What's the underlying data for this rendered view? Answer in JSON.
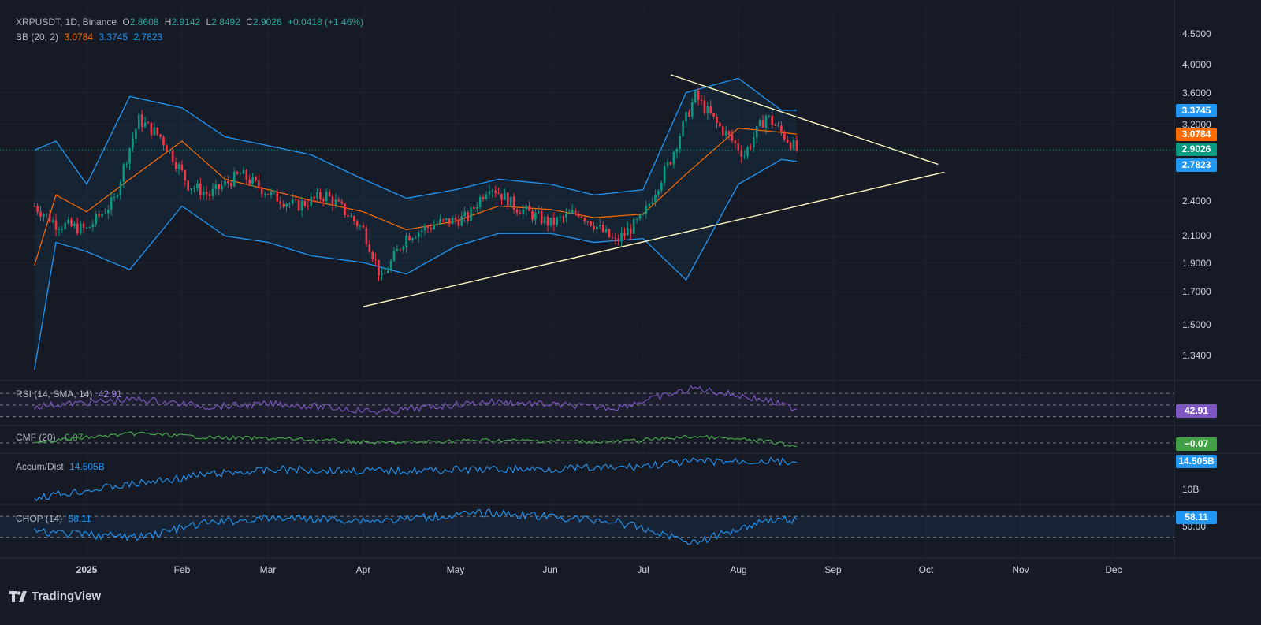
{
  "header": {
    "symbol": "XRPUSDT, 1D, Binance",
    "open_k": "O",
    "open": "2.8608",
    "high_k": "H",
    "high": "2.9142",
    "low_k": "L",
    "low": "2.8492",
    "close_k": "C",
    "close": "2.9026",
    "change": "+0.0418 (+1.46%)"
  },
  "bb_legend": {
    "label": "BB (20, 2)",
    "basis": "3.0784",
    "upper": "3.3745",
    "lower": "2.7823"
  },
  "price_axis": {
    "scale": "log",
    "ticks": [
      "4.5000",
      "4.0000",
      "3.6000",
      "3.2000",
      "2.4000",
      "2.1000",
      "1.9000",
      "1.7000",
      "1.5000",
      "1.3400"
    ]
  },
  "price_tags": [
    {
      "value": "3.3745",
      "color": "#2196f3"
    },
    {
      "value": "3.0784",
      "color": "#ff6d00"
    },
    {
      "value": "2.9026",
      "color": "#089981"
    },
    {
      "value": "2.7823",
      "color": "#2196f3"
    }
  ],
  "x_axis": [
    "2025",
    "Feb",
    "Mar",
    "Apr",
    "May",
    "Jun",
    "Jul",
    "Aug",
    "Sep",
    "Oct",
    "Nov",
    "Dec"
  ],
  "panes": {
    "rsi": {
      "label": "RSI (14, SMA, 14)",
      "value": "42.91",
      "color": "#7e57c2"
    },
    "cmf": {
      "label": "CMF (20)",
      "value": "−0.07",
      "legend_value": "-0.07",
      "color": "#4caf50"
    },
    "ad": {
      "label": "Accum/Dist",
      "value": "14.505B",
      "tick": "10B",
      "color": "#2196f3"
    },
    "chop": {
      "label": "CHOP (14)",
      "value": "58.11",
      "tick": "50.00",
      "color": "#2196f3"
    }
  },
  "brand": "TradingView",
  "chart_data": {
    "type": "line",
    "title": "XRPUSDT, 1D, Binance",
    "y_scale": "log",
    "ylim": [
      1.25,
      4.7
    ],
    "x_labels": [
      "2025",
      "Feb",
      "Mar",
      "Apr",
      "May",
      "Jun",
      "Jul",
      "Aug",
      "Sep",
      "Oct",
      "Nov",
      "Dec"
    ],
    "series": [
      {
        "name": "BB (20, 2)",
        "kind": "lower",
        "x": [
          "2024-12-15",
          "2024-12-22",
          "2025-01-01",
          "2025-01-15",
          "2025-02-01",
          "2025-02-15",
          "2025-03-01",
          "2025-03-15",
          "2025-04-01",
          "2025-04-15",
          "2025-05-01",
          "2025-05-15",
          "2025-06-01",
          "2025-06-15",
          "2025-07-01",
          "2025-07-15",
          "2025-08-01",
          "2025-08-15",
          "2025-08-20"
        ],
        "values": [
          1.27,
          2.05,
          1.98,
          1.85,
          2.35,
          2.1,
          2.05,
          1.95,
          1.9,
          1.82,
          2.02,
          2.12,
          2.12,
          2.05,
          2.08,
          1.78,
          2.55,
          2.8,
          2.78
        ]
      },
      {
        "name": "BB (20, 2)",
        "kind": "upper",
        "x": [
          "2024-12-15",
          "2024-12-22",
          "2025-01-01",
          "2025-01-15",
          "2025-02-01",
          "2025-02-15",
          "2025-03-01",
          "2025-03-15",
          "2025-04-01",
          "2025-04-15",
          "2025-05-01",
          "2025-05-15",
          "2025-06-01",
          "2025-06-15",
          "2025-07-01",
          "2025-07-15",
          "2025-08-01",
          "2025-08-15",
          "2025-08-20"
        ],
        "values": [
          2.9,
          3.0,
          2.55,
          3.55,
          3.4,
          3.05,
          2.95,
          2.85,
          2.6,
          2.42,
          2.5,
          2.6,
          2.55,
          2.45,
          2.5,
          3.6,
          3.8,
          3.37,
          3.37
        ]
      },
      {
        "name": "BB (20, 2)",
        "kind": "basis",
        "x": [
          "2024-12-15",
          "2024-12-22",
          "2025-01-01",
          "2025-01-15",
          "2025-02-01",
          "2025-02-15",
          "2025-03-01",
          "2025-03-15",
          "2025-04-01",
          "2025-04-15",
          "2025-05-01",
          "2025-05-15",
          "2025-06-01",
          "2025-06-15",
          "2025-07-01",
          "2025-07-15",
          "2025-08-01",
          "2025-08-15",
          "2025-08-20"
        ],
        "values": [
          1.88,
          2.45,
          2.3,
          2.6,
          3.0,
          2.6,
          2.5,
          2.4,
          2.3,
          2.15,
          2.22,
          2.35,
          2.32,
          2.25,
          2.28,
          2.65,
          3.15,
          3.1,
          3.08
        ]
      },
      {
        "name": "XRPUSDT",
        "kind": "close",
        "x": [
          "2024-12-15",
          "2024-12-22",
          "2025-01-01",
          "2025-01-10",
          "2025-01-18",
          "2025-01-25",
          "2025-02-03",
          "2025-02-10",
          "2025-02-20",
          "2025-03-02",
          "2025-03-10",
          "2025-03-20",
          "2025-04-01",
          "2025-04-07",
          "2025-04-15",
          "2025-04-25",
          "2025-05-05",
          "2025-05-12",
          "2025-05-20",
          "2025-06-01",
          "2025-06-10",
          "2025-06-22",
          "2025-07-01",
          "2025-07-10",
          "2025-07-18",
          "2025-07-25",
          "2025-08-03",
          "2025-08-10",
          "2025-08-15",
          "2025-08-20"
        ],
        "values": [
          2.35,
          2.2,
          2.15,
          2.4,
          3.25,
          3.05,
          2.55,
          2.45,
          2.65,
          2.45,
          2.35,
          2.45,
          2.15,
          1.78,
          2.1,
          2.2,
          2.25,
          2.55,
          2.35,
          2.2,
          2.3,
          2.05,
          2.25,
          2.8,
          3.55,
          3.2,
          2.85,
          3.3,
          3.1,
          2.9026
        ]
      }
    ],
    "trendlines": [
      {
        "name": "resistance",
        "from": [
          "2025-07-10",
          3.85
        ],
        "to": [
          "2025-10-05",
          2.75
        ]
      },
      {
        "name": "support",
        "from": [
          "2025-04-01",
          1.61
        ],
        "to": [
          "2025-10-07",
          2.67
        ]
      }
    ],
    "indicators": {
      "rsi": {
        "x": [
          "2024-12-15",
          "2025-01-18",
          "2025-02-10",
          "2025-03-05",
          "2025-04-07",
          "2025-05-12",
          "2025-06-22",
          "2025-07-18",
          "2025-08-10",
          "2025-08-20"
        ],
        "values": [
          48,
          60,
          47,
          52,
          38,
          56,
          45,
          79,
          58,
          42.91
        ],
        "bands": [
          70,
          50,
          30
        ]
      },
      "cmf": {
        "x": [
          "2024-12-15",
          "2025-01-18",
          "2025-02-10",
          "2025-03-05",
          "2025-04-07",
          "2025-05-12",
          "2025-06-22",
          "2025-07-18",
          "2025-08-10",
          "2025-08-20"
        ],
        "values": [
          0.02,
          0.18,
          0.1,
          0.08,
          0.0,
          0.05,
          0.02,
          0.12,
          0.03,
          -0.07
        ],
        "zero_line": 0
      },
      "accum_dist": {
        "x": [
          "2024-12-15",
          "2025-01-18",
          "2025-02-10",
          "2025-03-05",
          "2025-04-07",
          "2025-05-12",
          "2025-06-22",
          "2025-07-18",
          "2025-08-10",
          "2025-08-20"
        ],
        "values": [
          10.0,
          11.8,
          13.0,
          13.6,
          13.4,
          13.6,
          13.8,
          14.6,
          14.7,
          14.505
        ]
      },
      "chop": {
        "x": [
          "2024-12-15",
          "2025-01-18",
          "2025-02-10",
          "2025-03-05",
          "2025-04-07",
          "2025-05-12",
          "2025-06-22",
          "2025-07-18",
          "2025-08-10",
          "2025-08-20"
        ],
        "values": [
          44,
          38,
          55,
          60,
          57,
          66,
          56,
          32,
          58,
          58.11
        ],
        "bands": [
          61.8,
          38.2
        ]
      }
    }
  }
}
